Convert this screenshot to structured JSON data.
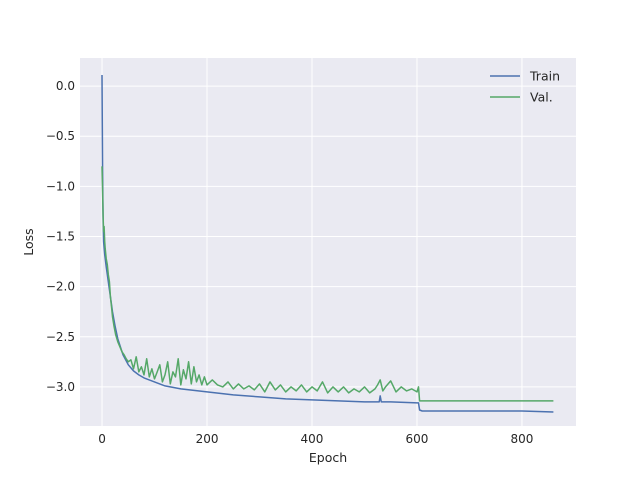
{
  "chart_data": {
    "type": "line",
    "title": "",
    "xlabel": "Epoch",
    "ylabel": "Loss",
    "xlim": [
      -42,
      903
    ],
    "ylim": [
      -3.39,
      0.28
    ],
    "xticks": [
      0,
      200,
      400,
      600,
      800
    ],
    "xtick_labels": [
      "0",
      "200",
      "400",
      "600",
      "800"
    ],
    "yticks": [
      0.0,
      -0.5,
      -1.0,
      -1.5,
      -2.0,
      -2.5,
      -3.0
    ],
    "ytick_labels": [
      "0.0",
      "−0.5",
      "−1.0",
      "−1.5",
      "−2.0",
      "−2.5",
      "−3.0"
    ],
    "grid": true,
    "legend_position": "top-right",
    "series": [
      {
        "name": "Train",
        "color": "#4c72b0",
        "x": [
          0,
          1,
          2,
          3,
          5,
          8,
          12,
          16,
          20,
          25,
          30,
          40,
          50,
          60,
          70,
          80,
          100,
          120,
          150,
          200,
          250,
          300,
          350,
          400,
          450,
          500,
          528,
          530,
          532,
          535,
          550,
          600,
          603,
          605,
          610,
          650,
          700,
          750,
          800,
          860
        ],
        "y": [
          0.11,
          -0.85,
          -1.35,
          -1.55,
          -1.68,
          -1.8,
          -1.95,
          -2.1,
          -2.25,
          -2.4,
          -2.52,
          -2.68,
          -2.78,
          -2.84,
          -2.88,
          -2.91,
          -2.95,
          -2.99,
          -3.02,
          -3.05,
          -3.08,
          -3.1,
          -3.12,
          -3.13,
          -3.14,
          -3.15,
          -3.15,
          -3.09,
          -3.15,
          -3.15,
          -3.15,
          -3.16,
          -3.16,
          -3.23,
          -3.24,
          -3.24,
          -3.24,
          -3.24,
          -3.24,
          -3.25
        ]
      },
      {
        "name": "Val.",
        "color": "#55a868",
        "x": [
          0,
          1,
          2,
          3,
          4,
          5,
          6,
          8,
          10,
          12,
          14,
          16,
          18,
          20,
          23,
          26,
          30,
          34,
          38,
          42,
          46,
          50,
          55,
          60,
          65,
          70,
          75,
          80,
          85,
          90,
          95,
          100,
          105,
          110,
          115,
          120,
          125,
          130,
          135,
          140,
          145,
          150,
          155,
          160,
          165,
          170,
          175,
          180,
          185,
          190,
          195,
          200,
          210,
          220,
          230,
          240,
          250,
          260,
          270,
          280,
          290,
          300,
          310,
          320,
          330,
          340,
          350,
          360,
          370,
          380,
          390,
          400,
          410,
          420,
          430,
          440,
          450,
          460,
          470,
          480,
          490,
          500,
          510,
          520,
          525,
          530,
          535,
          540,
          550,
          560,
          570,
          580,
          590,
          600,
          603,
          605,
          610,
          650,
          700,
          750,
          800,
          860
        ],
        "y": [
          -0.8,
          -1.05,
          -1.3,
          -1.45,
          -1.4,
          -1.55,
          -1.62,
          -1.72,
          -1.78,
          -1.88,
          -1.95,
          -2.1,
          -2.2,
          -2.3,
          -2.4,
          -2.48,
          -2.55,
          -2.6,
          -2.65,
          -2.68,
          -2.72,
          -2.75,
          -2.73,
          -2.82,
          -2.7,
          -2.85,
          -2.8,
          -2.88,
          -2.72,
          -2.9,
          -2.82,
          -2.92,
          -2.85,
          -2.78,
          -2.95,
          -2.88,
          -2.75,
          -2.97,
          -2.85,
          -2.9,
          -2.72,
          -2.98,
          -2.83,
          -2.92,
          -2.75,
          -2.97,
          -2.8,
          -2.95,
          -2.88,
          -2.98,
          -2.9,
          -2.98,
          -2.93,
          -2.98,
          -3.0,
          -2.95,
          -3.02,
          -2.97,
          -3.02,
          -2.99,
          -3.03,
          -2.97,
          -3.05,
          -2.95,
          -3.03,
          -2.98,
          -3.05,
          -3.0,
          -3.04,
          -2.98,
          -3.05,
          -3.0,
          -3.04,
          -2.95,
          -3.06,
          -3.0,
          -3.05,
          -3.0,
          -3.06,
          -3.02,
          -3.05,
          -3.0,
          -3.06,
          -3.02,
          -2.98,
          -2.93,
          -3.04,
          -3.0,
          -2.94,
          -3.05,
          -3.0,
          -3.04,
          -3.02,
          -3.05,
          -3.0,
          -3.14,
          -3.14,
          -3.14,
          -3.14,
          -3.14,
          -3.14,
          -3.14
        ]
      }
    ]
  }
}
